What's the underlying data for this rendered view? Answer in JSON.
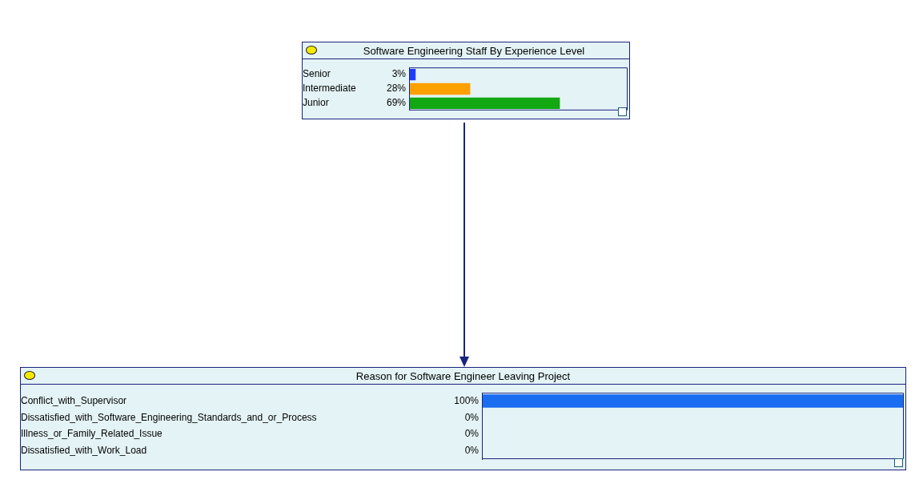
{
  "chart_data": [
    {
      "type": "bar",
      "orientation": "horizontal",
      "title": "Software Engineering Staff By Experience Level",
      "categories": [
        "Senior",
        "Intermediate",
        "Junior"
      ],
      "values": [
        3,
        28,
        69
      ],
      "colors": [
        "#1f3cff",
        "#ff9f00",
        "#12a812"
      ],
      "value_labels": [
        "3%",
        "28%",
        "69%"
      ],
      "xlim": [
        0,
        100
      ],
      "tick_labels": "y",
      "legend": false
    },
    {
      "type": "bar",
      "orientation": "horizontal",
      "title": "Reason for Software Engineer Leaving Project",
      "categories": [
        "Conflict_with_Supervisor",
        "Dissatisfied_with_Software_Engineering_Standards_and_or_Process",
        "Illness_or_Family_Related_Issue",
        "Dissatisfied_with_Work_Load"
      ],
      "values": [
        100,
        0,
        0,
        0
      ],
      "colors": [
        "#1a6cf0",
        "#1a6cf0",
        "#1a6cf0",
        "#1a6cf0"
      ],
      "value_labels": [
        "100%",
        "0%",
        "0%",
        "0%"
      ],
      "tick_labels": "y",
      "legend": false
    }
  ]
}
